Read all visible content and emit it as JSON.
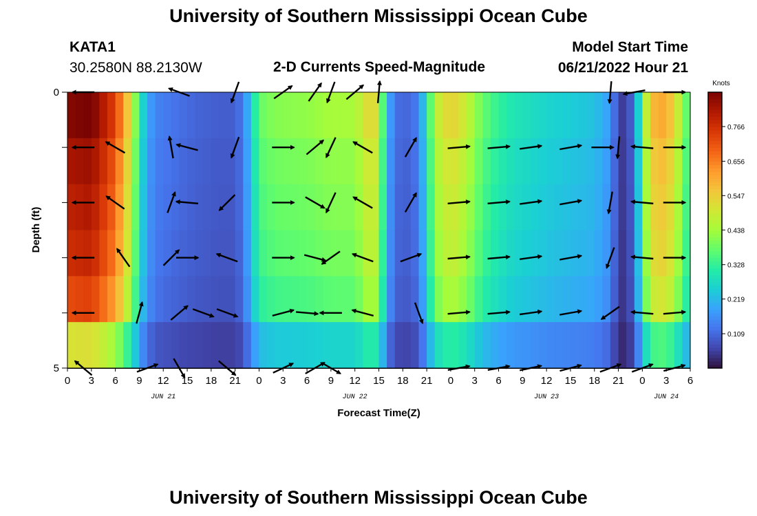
{
  "page": {
    "title": "University of Southern Mississippi Ocean Cube",
    "title_repeat": "University of Southern Mississippi Ocean Cube",
    "station": "KATA1",
    "coords": "30.2580N  88.2130W",
    "plot_title": "2-D Currents Speed-Magnitude",
    "model_label": "Model Start Time",
    "model_time": "06/21/2022 Hour 21"
  },
  "chart_data": {
    "type": "heatmap",
    "xlabel": "Forecast Time(Z)",
    "ylabel": "Depth (ft)",
    "x_tick_labels": [
      "0",
      "3",
      "6",
      "9",
      "12",
      "15",
      "18",
      "21",
      "0",
      "3",
      "6",
      "9",
      "12",
      "15",
      "18",
      "21",
      "0",
      "3",
      "6",
      "9",
      "12",
      "15",
      "18",
      "21",
      "0",
      "3",
      "6"
    ],
    "x_hours": [
      0,
      3,
      6,
      9,
      12,
      15,
      18,
      21,
      24,
      27,
      30,
      33,
      36,
      39,
      42,
      45,
      48,
      51,
      54,
      57,
      60,
      63,
      66,
      69,
      72,
      75,
      78
    ],
    "date_labels": [
      {
        "hour": 12,
        "text": "JUN 21"
      },
      {
        "hour": 36,
        "text": "JUN 22"
      },
      {
        "hour": 60,
        "text": "JUN 23"
      },
      {
        "hour": 75,
        "text": "JUN 24"
      }
    ],
    "y_tick_labels": [
      "0",
      "5"
    ],
    "ylim": [
      0,
      5
    ],
    "xlim": [
      0,
      78
    ],
    "colorbar": {
      "label": "Knots",
      "ticks": [
        0.109,
        0.219,
        0.328,
        0.438,
        0.547,
        0.656,
        0.766
      ],
      "range": [
        0.0,
        0.875
      ],
      "colors": [
        "#30123b",
        "#4145ab",
        "#4675ed",
        "#39a2fc",
        "#1bcfd4",
        "#24eca6",
        "#61fc6c",
        "#a4fc3b",
        "#d1e834",
        "#f3c63a",
        "#fe9b2d",
        "#f36315",
        "#d93806",
        "#b11901",
        "#7a0402"
      ]
    },
    "time_profile": [
      {
        "h": 0,
        "s": 0.82
      },
      {
        "h": 3,
        "s": 0.84
      },
      {
        "h": 6,
        "s": 0.7
      },
      {
        "h": 8,
        "s": 0.48
      },
      {
        "h": 9,
        "s": 0.3
      },
      {
        "h": 10,
        "s": 0.19
      },
      {
        "h": 11,
        "s": 0.14
      },
      {
        "h": 13,
        "s": 0.12
      },
      {
        "h": 16,
        "s": 0.1
      },
      {
        "h": 19,
        "s": 0.09
      },
      {
        "h": 21,
        "s": 0.09
      },
      {
        "h": 22,
        "s": 0.13
      },
      {
        "h": 23,
        "s": 0.24
      },
      {
        "h": 24,
        "s": 0.36
      },
      {
        "h": 26,
        "s": 0.39
      },
      {
        "h": 30,
        "s": 0.4
      },
      {
        "h": 33,
        "s": 0.42
      },
      {
        "h": 36,
        "s": 0.42
      },
      {
        "h": 38,
        "s": 0.52
      },
      {
        "h": 39,
        "s": 0.47
      },
      {
        "h": 40,
        "s": 0.22
      },
      {
        "h": 41,
        "s": 0.11
      },
      {
        "h": 43,
        "s": 0.1
      },
      {
        "h": 44,
        "s": 0.14
      },
      {
        "h": 45,
        "s": 0.27
      },
      {
        "h": 46,
        "s": 0.44
      },
      {
        "h": 48,
        "s": 0.52
      },
      {
        "h": 50,
        "s": 0.46
      },
      {
        "h": 52,
        "s": 0.36
      },
      {
        "h": 54,
        "s": 0.31
      },
      {
        "h": 56,
        "s": 0.28
      },
      {
        "h": 60,
        "s": 0.25
      },
      {
        "h": 64,
        "s": 0.23
      },
      {
        "h": 66,
        "s": 0.22
      },
      {
        "h": 68,
        "s": 0.17
      },
      {
        "h": 69,
        "s": 0.05
      },
      {
        "h": 70,
        "s": 0.05
      },
      {
        "h": 71,
        "s": 0.12
      },
      {
        "h": 72,
        "s": 0.36
      },
      {
        "h": 73,
        "s": 0.55
      },
      {
        "h": 75,
        "s": 0.58
      },
      {
        "h": 77,
        "s": 0.42
      },
      {
        "h": 78,
        "s": 0.3
      }
    ],
    "depth_factor": [
      1.05,
      1.0,
      0.97,
      0.94,
      0.88,
      0.62
    ],
    "vector_rows": [
      0,
      1,
      2,
      3,
      4,
      5
    ],
    "vectors": [
      {
        "h": 2,
        "r": 0,
        "a": 180
      },
      {
        "h": 14,
        "r": 0,
        "a": 160
      },
      {
        "h": 21,
        "r": 0,
        "a": 250
      },
      {
        "h": 27,
        "r": 0,
        "a": 35
      },
      {
        "h": 31,
        "r": 0,
        "a": 55
      },
      {
        "h": 33,
        "r": 0,
        "a": 250
      },
      {
        "h": 36,
        "r": 0,
        "a": 40
      },
      {
        "h": 39,
        "r": 0,
        "a": 85
      },
      {
        "h": 68,
        "r": 0,
        "a": 265
      },
      {
        "h": 71,
        "r": 0,
        "a": 190
      },
      {
        "h": 76,
        "r": 0,
        "a": 0
      },
      {
        "h": 2,
        "r": 1,
        "a": 180
      },
      {
        "h": 6,
        "r": 1,
        "a": 150
      },
      {
        "h": 13,
        "r": 1,
        "a": 100
      },
      {
        "h": 15,
        "r": 1,
        "a": 165
      },
      {
        "h": 21,
        "r": 1,
        "a": 250
      },
      {
        "h": 27,
        "r": 1,
        "a": 0
      },
      {
        "h": 31,
        "r": 1,
        "a": 40
      },
      {
        "h": 33,
        "r": 1,
        "a": 245
      },
      {
        "h": 37,
        "r": 1,
        "a": 150
      },
      {
        "h": 43,
        "r": 1,
        "a": 60
      },
      {
        "h": 49,
        "r": 1,
        "a": 5
      },
      {
        "h": 54,
        "r": 1,
        "a": 5
      },
      {
        "h": 58,
        "r": 1,
        "a": 8
      },
      {
        "h": 63,
        "r": 1,
        "a": 10
      },
      {
        "h": 67,
        "r": 1,
        "a": 0
      },
      {
        "h": 69,
        "r": 1,
        "a": 265
      },
      {
        "h": 72,
        "r": 1,
        "a": 175
      },
      {
        "h": 76,
        "r": 1,
        "a": 0
      },
      {
        "h": 2,
        "r": 2,
        "a": 180
      },
      {
        "h": 6,
        "r": 2,
        "a": 145
      },
      {
        "h": 13,
        "r": 2,
        "a": 70
      },
      {
        "h": 15,
        "r": 2,
        "a": 175
      },
      {
        "h": 20,
        "r": 2,
        "a": 225
      },
      {
        "h": 27,
        "r": 2,
        "a": 0
      },
      {
        "h": 31,
        "r": 2,
        "a": 330
      },
      {
        "h": 33,
        "r": 2,
        "a": 245
      },
      {
        "h": 37,
        "r": 2,
        "a": 150
      },
      {
        "h": 43,
        "r": 2,
        "a": 60
      },
      {
        "h": 49,
        "r": 2,
        "a": 5
      },
      {
        "h": 54,
        "r": 2,
        "a": 5
      },
      {
        "h": 58,
        "r": 2,
        "a": 8
      },
      {
        "h": 63,
        "r": 2,
        "a": 10
      },
      {
        "h": 68,
        "r": 2,
        "a": 260
      },
      {
        "h": 72,
        "r": 2,
        "a": 175
      },
      {
        "h": 76,
        "r": 2,
        "a": 0
      },
      {
        "h": 2,
        "r": 3,
        "a": 180
      },
      {
        "h": 7,
        "r": 3,
        "a": 125
      },
      {
        "h": 13,
        "r": 3,
        "a": 45
      },
      {
        "h": 15,
        "r": 3,
        "a": 0
      },
      {
        "h": 20,
        "r": 3,
        "a": 160
      },
      {
        "h": 27,
        "r": 3,
        "a": 0
      },
      {
        "h": 31,
        "r": 3,
        "a": 345
      },
      {
        "h": 33,
        "r": 3,
        "a": 215
      },
      {
        "h": 37,
        "r": 3,
        "a": 160
      },
      {
        "h": 43,
        "r": 3,
        "a": 20
      },
      {
        "h": 49,
        "r": 3,
        "a": 5
      },
      {
        "h": 54,
        "r": 3,
        "a": 5
      },
      {
        "h": 58,
        "r": 3,
        "a": 8
      },
      {
        "h": 63,
        "r": 3,
        "a": 10
      },
      {
        "h": 68,
        "r": 3,
        "a": 250
      },
      {
        "h": 72,
        "r": 3,
        "a": 175
      },
      {
        "h": 76,
        "r": 3,
        "a": 0
      },
      {
        "h": 2,
        "r": 4,
        "a": 180
      },
      {
        "h": 9,
        "r": 4,
        "a": 75
      },
      {
        "h": 14,
        "r": 4,
        "a": 40
      },
      {
        "h": 17,
        "r": 4,
        "a": 340
      },
      {
        "h": 20,
        "r": 4,
        "a": 340
      },
      {
        "h": 27,
        "r": 4,
        "a": 15
      },
      {
        "h": 30,
        "r": 4,
        "a": 355
      },
      {
        "h": 33,
        "r": 4,
        "a": 180
      },
      {
        "h": 37,
        "r": 4,
        "a": 165
      },
      {
        "h": 44,
        "r": 4,
        "a": 290
      },
      {
        "h": 49,
        "r": 4,
        "a": 5
      },
      {
        "h": 54,
        "r": 4,
        "a": 5
      },
      {
        "h": 58,
        "r": 4,
        "a": 8
      },
      {
        "h": 63,
        "r": 4,
        "a": 10
      },
      {
        "h": 68,
        "r": 4,
        "a": 215
      },
      {
        "h": 72,
        "r": 4,
        "a": 175
      },
      {
        "h": 76,
        "r": 4,
        "a": 5
      },
      {
        "h": 2,
        "r": 5,
        "a": 140
      },
      {
        "h": 10,
        "r": 5,
        "a": 20
      },
      {
        "h": 14,
        "r": 5,
        "a": 300
      },
      {
        "h": 20,
        "r": 5,
        "a": 320
      },
      {
        "h": 27,
        "r": 5,
        "a": 25
      },
      {
        "h": 31,
        "r": 5,
        "a": 30
      },
      {
        "h": 33,
        "r": 5,
        "a": 330
      },
      {
        "h": 49,
        "r": 5,
        "a": 10
      },
      {
        "h": 54,
        "r": 5,
        "a": 10
      },
      {
        "h": 58,
        "r": 5,
        "a": 12
      },
      {
        "h": 63,
        "r": 5,
        "a": 15
      },
      {
        "h": 68,
        "r": 5,
        "a": 20
      },
      {
        "h": 72,
        "r": 5,
        "a": 20
      },
      {
        "h": 76,
        "r": 5,
        "a": 15
      }
    ]
  }
}
